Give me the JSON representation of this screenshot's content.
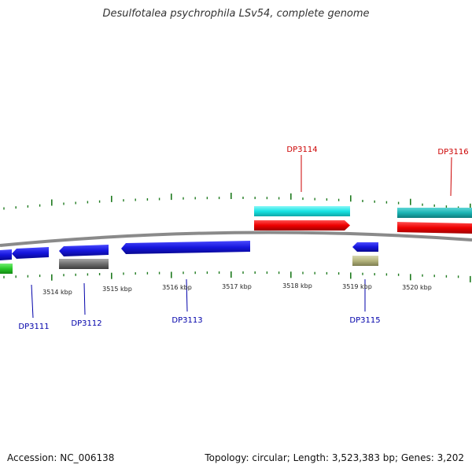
{
  "title": "Desulfotalea psychrophila LSv54, complete genome",
  "footer": {
    "accession": "Accession: NC_006138",
    "summary": "Topology: circular; Length: 3,523,383 bp; Genes: 3,202"
  },
  "scale_labels": [
    "3514 kbp",
    "3515 kbp",
    "3516 kbp",
    "3517 kbp",
    "3518 kbp",
    "3519 kbp",
    "3520 kbp"
  ],
  "gene_labels": {
    "DP3111": "DP3111",
    "DP3112": "DP3112",
    "DP3113": "DP3113",
    "DP3114": "DP3114",
    "DP3115": "DP3115",
    "DP3116": "DP3116"
  },
  "colors": {
    "backbone": "#8a8a8a",
    "tick": "#1e7a1e",
    "cds_forward": "#e80000",
    "cds_reverse": "#1212d8",
    "cyan_feature": "#16e3e3",
    "teal_feature": "#1ab4b4",
    "green_feature": "#28c828",
    "gray_feature": "#6a6a6a",
    "olive_feature": "#b4b47c",
    "label_forward": "#cc0000",
    "label_reverse": "#0000aa"
  }
}
